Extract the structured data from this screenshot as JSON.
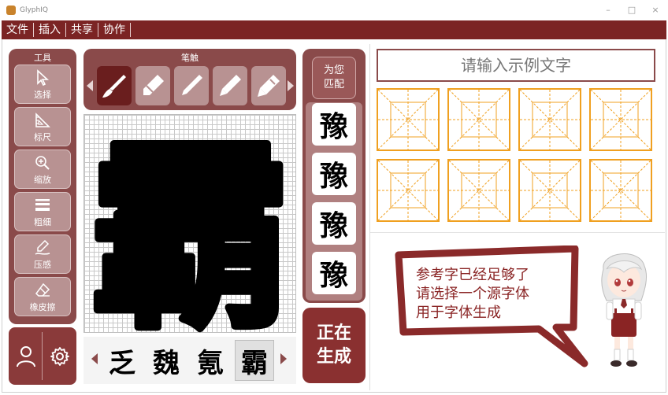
{
  "window": {
    "title": "GlyphIQ"
  },
  "menu": [
    "文件",
    "插入",
    "共享",
    "协作"
  ],
  "tools": {
    "title": "工具",
    "items": [
      {
        "label": "选择",
        "icon": "cursor-icon"
      },
      {
        "label": "标尺",
        "icon": "ruler-icon"
      },
      {
        "label": "缩放",
        "icon": "zoom-icon"
      },
      {
        "label": "粗细",
        "icon": "thickness-icon"
      },
      {
        "label": "压感",
        "icon": "pressure-icon"
      },
      {
        "label": "橡皮擦",
        "icon": "eraser-icon"
      }
    ]
  },
  "brushes": {
    "title": "笔触",
    "items": [
      "brush-1",
      "brush-2",
      "brush-3",
      "brush-4",
      "brush-5"
    ],
    "selected_index": 0
  },
  "canvas": {
    "glyph": "霸"
  },
  "candidates": {
    "items": [
      "乏",
      "魏",
      "氪",
      "霸"
    ],
    "selected_index": 3
  },
  "match": {
    "button_label": "为您匹配",
    "glyphs": [
      "豫",
      "豫",
      "豫",
      "豫"
    ]
  },
  "generate": {
    "label": "正在生成"
  },
  "example_input": {
    "placeholder": "请输入示例文字"
  },
  "hint": {
    "lines": [
      "参考字已经足够了",
      "请选择一个源字体",
      "用于字体生成"
    ]
  },
  "colors": {
    "menubar": "#7b2424",
    "panel": "#8a4a4a",
    "button": "#b89292",
    "grid_line": "#f0a020",
    "hint_text": "#8a2424"
  }
}
